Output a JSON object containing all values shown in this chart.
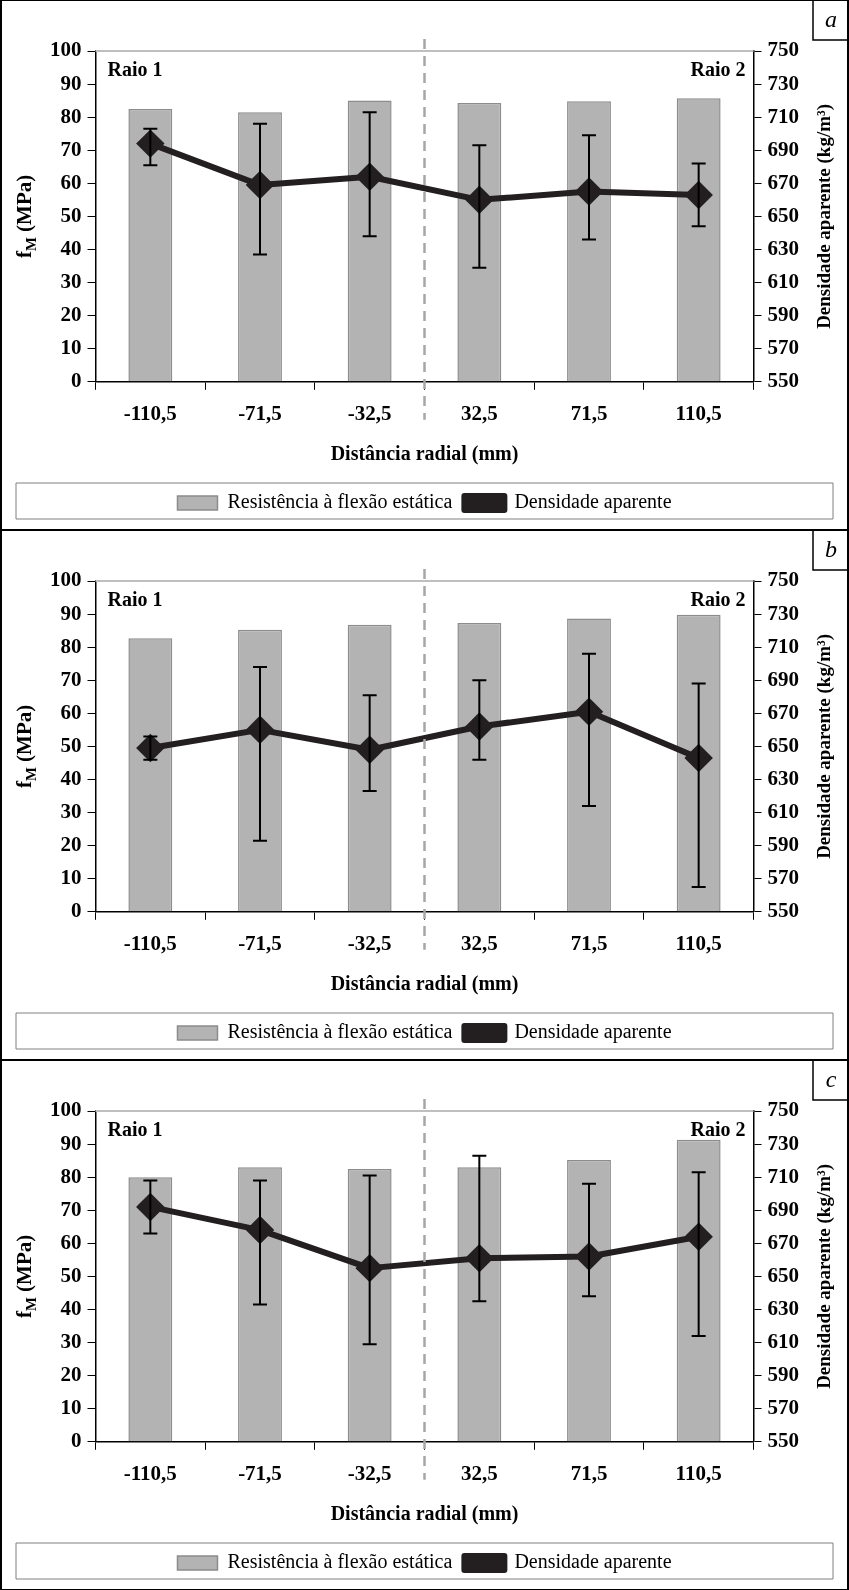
{
  "chart_data": [
    {
      "type": "bar",
      "categories": [
        "-110,5",
        "-71,5",
        "-32,5",
        "32,5",
        "71,5",
        "110,5"
      ],
      "xlabel": "Distância radial (mm)",
      "ylabel": "f$_{M}$ (MPa)",
      "y2label": "Densidade aparente (kg/m³)",
      "ylim": [
        0,
        100
      ],
      "yticks": [
        0,
        10,
        20,
        30,
        40,
        50,
        60,
        70,
        80,
        90,
        100
      ],
      "y2lim": [
        550,
        750
      ],
      "y2ticks": [
        550,
        570,
        590,
        610,
        630,
        650,
        670,
        690,
        710,
        730,
        750
      ],
      "series": [
        {
          "name": "Resistência à flexão estática",
          "color": "#b3b3b3",
          "values": [
            82.5,
            81.5,
            85,
            84.3,
            84.8,
            85.7
          ]
        },
        {
          "name": "Densidade aparente",
          "type": "line",
          "axis": "y2",
          "color": "#231f20",
          "values": [
            694,
            669,
            674,
            660,
            665,
            663
          ],
          "errors": [
            [
              681,
              703
            ],
            [
              627,
              706
            ],
            [
              638,
              713
            ],
            [
              619,
              693
            ],
            [
              636,
              699
            ],
            [
              644,
              682
            ]
          ]
        }
      ],
      "annotations": [
        "Raio 1",
        "Raio 2",
        "a"
      ],
      "legend": "bottom",
      "marker": "diamond",
      "grid": false
    },
    {
      "type": "bar",
      "categories": [
        "-110,5",
        "-71,5",
        "-32,5",
        "32,5",
        "71,5",
        "110,5"
      ],
      "xlabel": "Distância radial (mm)",
      "ylabel": "f$_{M}$ (MPa)",
      "y2label": "Densidade aparente (kg/m³)",
      "ylim": [
        0,
        100
      ],
      "yticks": [
        0,
        10,
        20,
        30,
        40,
        50,
        60,
        70,
        80,
        90,
        100
      ],
      "y2lim": [
        550,
        750
      ],
      "y2ticks": [
        550,
        570,
        590,
        610,
        630,
        650,
        670,
        690,
        710,
        730,
        750
      ],
      "series": [
        {
          "name": "Resistência à flexão estática",
          "color": "#b3b3b3",
          "values": [
            82.7,
            85.3,
            86.8,
            87.3,
            88.7,
            89.8
          ]
        },
        {
          "name": "Densidade aparente",
          "type": "line",
          "axis": "y2",
          "color": "#231f20",
          "values": [
            649,
            660,
            648,
            662,
            671,
            643
          ],
          "errors": [
            [
              642,
              656
            ],
            [
              593,
              698
            ],
            [
              623,
              681
            ],
            [
              642,
              690
            ],
            [
              614,
              706
            ],
            [
              565,
              688
            ]
          ]
        }
      ],
      "annotations": [
        "Raio 1",
        "Raio 2",
        "b"
      ],
      "legend": "bottom",
      "marker": "diamond",
      "grid": false
    },
    {
      "type": "bar",
      "categories": [
        "-110,5",
        "-71,5",
        "-32,5",
        "32,5",
        "71,5",
        "110,5"
      ],
      "xlabel": "Distância radial (mm)",
      "ylabel": "f$_{M}$ (MPa)",
      "y2label": "Densidade aparente (kg/m³)",
      "ylim": [
        0,
        100
      ],
      "yticks": [
        0,
        10,
        20,
        30,
        40,
        50,
        60,
        70,
        80,
        90,
        100
      ],
      "y2lim": [
        550,
        750
      ],
      "y2ticks": [
        550,
        570,
        590,
        610,
        630,
        650,
        670,
        690,
        710,
        730,
        750
      ],
      "series": [
        {
          "name": "Resistência à flexão estática",
          "color": "#b3b3b3",
          "values": [
            80,
            83,
            82.5,
            83,
            85.2,
            91.3
          ]
        },
        {
          "name": "Densidade aparente",
          "type": "line",
          "axis": "y2",
          "color": "#231f20",
          "values": [
            692,
            678,
            655,
            661,
            662,
            674
          ],
          "errors": [
            [
              676,
              708
            ],
            [
              633,
              708
            ],
            [
              609,
              711
            ],
            [
              635,
              723
            ],
            [
              638,
              706
            ],
            [
              614,
              713
            ]
          ]
        }
      ],
      "annotations": [
        "Raio 1",
        "Raio 2",
        "c"
      ],
      "legend": "bottom",
      "marker": "diamond",
      "grid": false
    }
  ]
}
